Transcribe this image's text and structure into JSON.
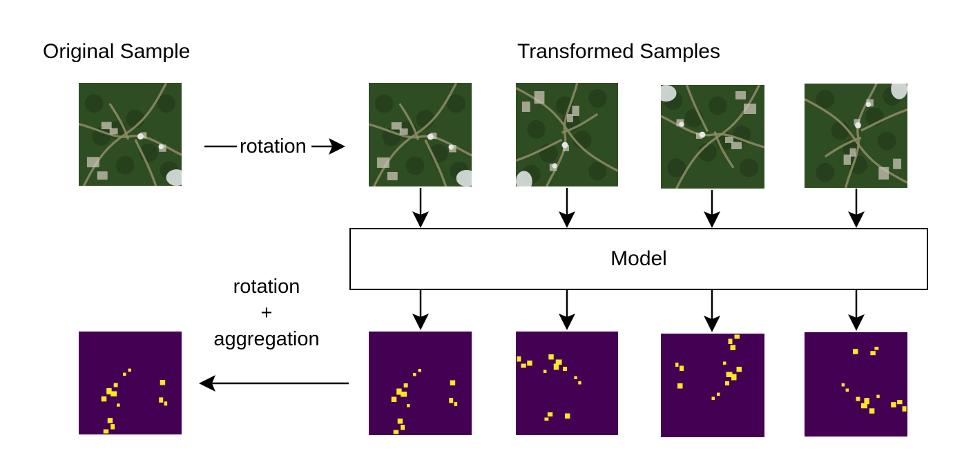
{
  "labels": {
    "original": "Original Sample",
    "transformed": "Transformed Samples",
    "rotation": "rotation",
    "model": "Model",
    "back_line1": "rotation",
    "back_line2": "+",
    "back_line3": "aggregation"
  },
  "colors": {
    "mask_background": "#440154",
    "mask_foreground": "#fde725",
    "forest": "#2f4d22",
    "forest_dark": "#22391a",
    "path": "#8b8a63",
    "building": "#c9c3b4",
    "cloud": "#e8ecef"
  },
  "images": {
    "original": {
      "kind": "aerial-image",
      "rotation_deg": 0
    },
    "transformed": [
      {
        "kind": "aerial-image",
        "rotation_deg": 0
      },
      {
        "kind": "aerial-image",
        "rotation_deg": 90
      },
      {
        "kind": "aerial-image",
        "rotation_deg": 180
      },
      {
        "kind": "aerial-image",
        "rotation_deg": 270
      }
    ],
    "predictions": [
      {
        "kind": "segmentation-mask",
        "rotation_deg": 0
      },
      {
        "kind": "segmentation-mask",
        "rotation_deg": 90
      },
      {
        "kind": "segmentation-mask",
        "rotation_deg": 180
      },
      {
        "kind": "segmentation-mask",
        "rotation_deg": 270
      }
    ],
    "aggregated": {
      "kind": "segmentation-mask",
      "rotation_deg": 0
    }
  }
}
